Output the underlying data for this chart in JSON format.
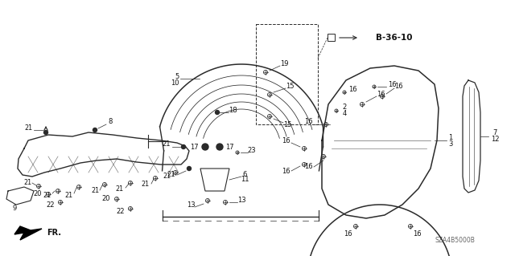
{
  "bg_color": "#ffffff",
  "line_color": "#2a2a2a",
  "text_color": "#111111",
  "watermark": "SZA4B5000B",
  "ref_label": "B-36-10",
  "fr_label": "FR.",
  "figsize": [
    6.4,
    3.19
  ],
  "dpi": 100
}
